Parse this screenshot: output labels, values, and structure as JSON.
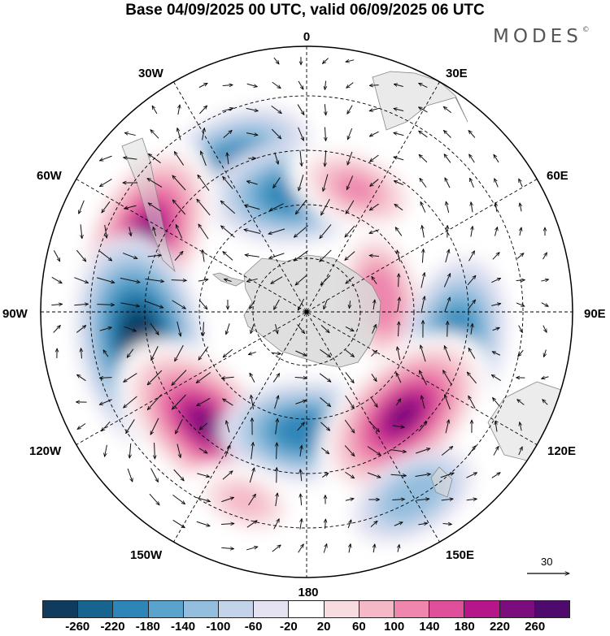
{
  "title": "Base 04/09/2025 00 UTC, valid 06/09/2025 06 UTC",
  "brand": "MODES",
  "brand_mark": "©",
  "longitude_labels": {
    "top": "0",
    "bottom": "180",
    "left": "90W",
    "right": "90E",
    "top_left": "30W",
    "top_right": "30E",
    "upper_left": "60W",
    "upper_right": "60E",
    "lower_left": "120W",
    "lower_right": "120E",
    "bottom_left": "150W",
    "bottom_right": "150E"
  },
  "reference_vector": {
    "value": "30"
  },
  "colorbar": {
    "ticks": [
      "-260",
      "-220",
      "-180",
      "-140",
      "-100",
      "-60",
      "-20",
      "20",
      "60",
      "100",
      "140",
      "180",
      "220",
      "260"
    ],
    "colors": [
      "#0f3b5e",
      "#17648f",
      "#2e86b8",
      "#5aa3cc",
      "#93bedd",
      "#c3d3ea",
      "#e5e3f1",
      "#ffffff",
      "#f8dde0",
      "#f4b8c6",
      "#ee86ad",
      "#df4f9a",
      "#b5178a",
      "#7c0d7c",
      "#4e0a6d"
    ]
  },
  "anomalies": [
    {
      "name": "cyclone-30w",
      "sign": "neg",
      "lon": -28,
      "colat": 37,
      "value": -180
    },
    {
      "name": "cyclone-5w",
      "sign": "neg",
      "lon": -5,
      "colat": 27,
      "value": -180
    },
    {
      "name": "ridge-60w",
      "sign": "pos",
      "lon": -65,
      "colat": 40,
      "value": 240
    },
    {
      "name": "ridge-20e",
      "sign": "pos",
      "lon": 22,
      "colat": 30,
      "value": 120
    },
    {
      "name": "ridge-80e",
      "sign": "pos",
      "lon": 80,
      "colat": 17,
      "value": 140
    },
    {
      "name": "cyclone-90w",
      "sign": "neg",
      "lon": -100,
      "colat": 38,
      "value": -260
    },
    {
      "name": "cyclone-100e",
      "sign": "neg",
      "lon": 102,
      "colat": 34,
      "value": -180
    },
    {
      "name": "ridge-135w",
      "sign": "pos",
      "lon": -138,
      "colat": 34,
      "value": 250
    },
    {
      "name": "cyclone-180",
      "sign": "neg",
      "lon": 180,
      "colat": 27,
      "value": -180
    },
    {
      "name": "ridge-135e",
      "sign": "pos",
      "lon": 137,
      "colat": 32,
      "value": 240
    },
    {
      "name": "cyclone-150e",
      "sign": "neg",
      "lon": 150,
      "colat": 48,
      "value": -100
    },
    {
      "name": "ridge-165w",
      "sign": "pos",
      "lon": -162,
      "colat": 45,
      "value": 80
    }
  ]
}
